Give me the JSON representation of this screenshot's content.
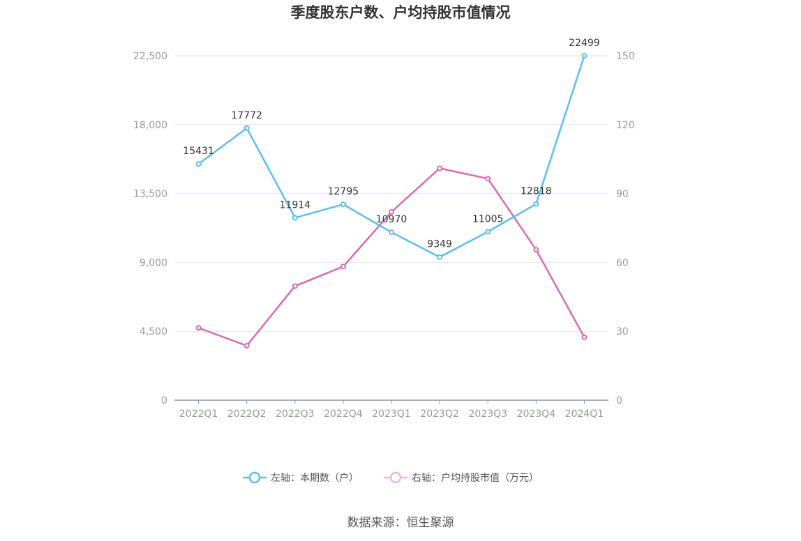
{
  "chart_data": {
    "type": "line",
    "title": "季度股东户数、户均持股市值情况",
    "categories": [
      "2022Q1",
      "2022Q2",
      "2022Q3",
      "2022Q4",
      "2023Q1",
      "2023Q2",
      "2023Q3",
      "2023Q4",
      "2024Q1"
    ],
    "y_left": {
      "ticks": [
        0,
        4500,
        9000,
        13500,
        18000,
        22500
      ],
      "tick_labels": [
        "0",
        "4,500",
        "9,000",
        "13,500",
        "18,000",
        "22,500"
      ],
      "range": [
        0,
        22500
      ]
    },
    "y_right": {
      "ticks": [
        0,
        30,
        60,
        90,
        120,
        150
      ],
      "tick_labels": [
        "0",
        "30",
        "60",
        "90",
        "120",
        "150"
      ],
      "range": [
        0,
        150
      ]
    },
    "series": [
      {
        "name": "左轴：本期数（户）",
        "axis": "left",
        "color": "#5bbef0",
        "values": [
          15431,
          17772,
          11914,
          12795,
          10970,
          9349,
          11005,
          12818,
          22499
        ],
        "labels": [
          "15431",
          "17772",
          "11914",
          "12795",
          "10970",
          "9349",
          "11005",
          "12818",
          "22499"
        ]
      },
      {
        "name": "右轴：户均持股市值（万元）",
        "axis": "right",
        "color": "#d96bb0",
        "values": [
          31.5,
          23.7,
          49.7,
          58.2,
          82.0,
          101.0,
          96.5,
          65.5,
          27.4
        ]
      }
    ],
    "legend_position": "bottom",
    "grid": true
  },
  "source_text": "数据来源：恒生聚源"
}
